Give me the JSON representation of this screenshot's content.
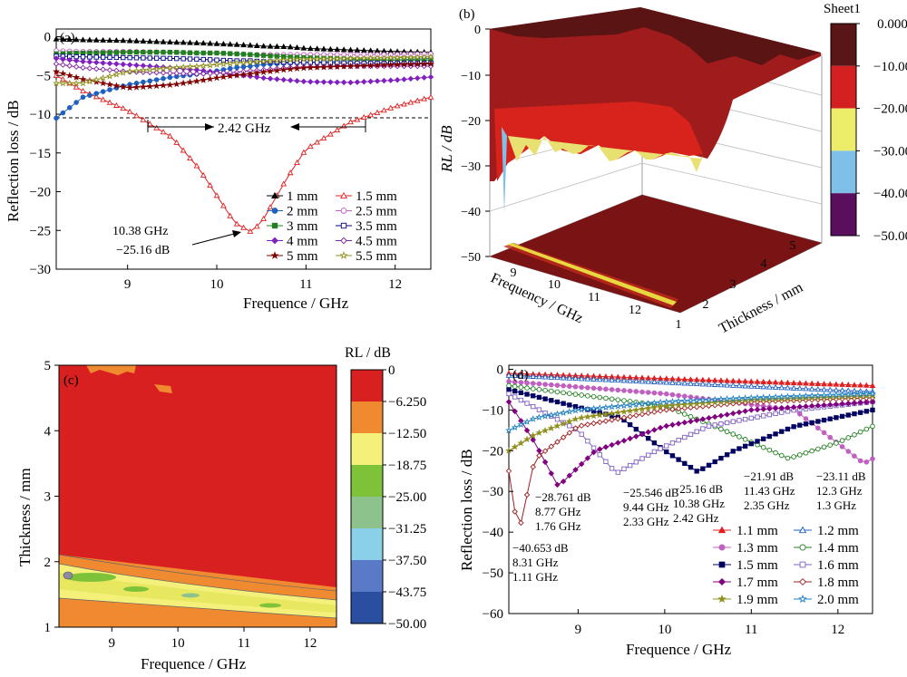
{
  "panels": {
    "a": {
      "label": "(a)",
      "xlabel": "Frequence / GHz",
      "ylabel": "Reflection loss / dB",
      "xlim": [
        8.2,
        12.4
      ],
      "ylim": [
        -30,
        1
      ],
      "xticks": [
        "9",
        "10",
        "11",
        "12"
      ],
      "yticks": [
        "0",
        "−5",
        "−10",
        "−15",
        "−20",
        "−25",
        "−30"
      ],
      "bandwidth_label": "2.42 GHz",
      "min_annot_line1": "10.38 GHz",
      "min_annot_line2": "−25.16 dB",
      "legend": [
        "1 mm",
        "1.5 mm",
        "2 mm",
        "2.5 mm",
        "3 mm",
        "3.5 mm",
        "4 mm",
        "4.5 mm",
        "5 mm",
        "5.5 mm"
      ]
    },
    "b": {
      "label": "(b)",
      "zlabel": "RL / dB",
      "xlabel": "Frequency / GHz",
      "ylabel": "Thickness / mm",
      "zticks": [
        "0",
        "−10",
        "−20",
        "−30",
        "−40",
        "−50"
      ],
      "xticks": [
        "9",
        "10",
        "11",
        "12"
      ],
      "yticks": [
        "1",
        "2",
        "3",
        "4",
        "5"
      ],
      "colorbar_title": "Sheet1",
      "colorbar_ticks": [
        "0.000",
        "−10.00",
        "−20.00",
        "−30.00",
        "−40.00",
        "−50.00"
      ],
      "colorbar_colors": [
        "#5a1616",
        "#d42020",
        "#eded6a",
        "#7ec0e8",
        "#5a0f5e"
      ]
    },
    "c": {
      "label": "(c)",
      "xlabel": "Frequence / GHz",
      "ylabel": "Thickness / mm",
      "colorbar_title": "RL / dB",
      "xticks": [
        "9",
        "10",
        "11",
        "12"
      ],
      "yticks": [
        "1",
        "2",
        "3",
        "4",
        "5"
      ],
      "colorbar_ticks": [
        "0",
        "−6.250",
        "−12.50",
        "−18.75",
        "−25.00",
        "−31.25",
        "−37.50",
        "−43.75",
        "−50.00"
      ],
      "colorbar_colors": [
        "#d82020",
        "#f08a30",
        "#f4f07a",
        "#7ec23a",
        "#8ec28c",
        "#8ad0e8",
        "#5a7ac8",
        "#2a4ea0"
      ]
    },
    "d": {
      "label": "(d)",
      "xlabel": "Frequence / GHz",
      "ylabel": "Reflection loss / dB",
      "xlim": [
        8.2,
        12.4
      ],
      "ylim": [
        -60,
        1
      ],
      "xticks": [
        "9",
        "10",
        "11",
        "12"
      ],
      "yticks": [
        "0",
        "−10",
        "−20",
        "−30",
        "−40",
        "−50",
        "−60"
      ],
      "legend": [
        "1.1 mm",
        "1.2 mm",
        "1.3 mm",
        "1.4 mm",
        "1.5 mm",
        "1.6 mm",
        "1.7 mm",
        "1.8 mm",
        "1.9 mm",
        "2.0 mm"
      ],
      "annotations": [
        {
          "l1": "−40.653 dB",
          "l2": "8.31 GHz",
          "l3": "1.11 GHz"
        },
        {
          "l1": "−28.761 dB",
          "l2": "8.77 GHz",
          "l3": "1.76 GHz"
        },
        {
          "l1": "−25.546 dB",
          "l2": "9.44 GHz",
          "l3": "2.33 GHz"
        },
        {
          "l1": "−25.16 dB",
          "l2": "10.38 GHz",
          "l3": "2.42 GHz"
        },
        {
          "l1": "−21.91 dB",
          "l2": "11.43 GHz",
          "l3": "2.35 GHz"
        },
        {
          "l1": "−23.11 dB",
          "l2": "12.3 GHz",
          "l3": "1.3 GHz"
        }
      ]
    }
  },
  "chart_data": [
    {
      "panel": "a",
      "type": "line",
      "xlabel": "Frequence / GHz",
      "ylabel": "Reflection loss / dB",
      "xlim": [
        8.2,
        12.4
      ],
      "ylim": [
        -30,
        1
      ],
      "x": [
        8.2,
        8.5,
        9.0,
        9.5,
        9.8,
        10.0,
        10.2,
        10.38,
        10.5,
        10.8,
        11.0,
        11.5,
        12.0,
        12.4
      ],
      "series": [
        {
          "name": "1 mm",
          "color": "#000000",
          "marker": "triangle-filled",
          "values": [
            -0.3,
            -0.4,
            -0.5,
            -0.7,
            -0.8,
            -0.9,
            -1.0,
            -1.1,
            -1.2,
            -1.3,
            -1.5,
            -1.7,
            -1.9,
            -2.0
          ]
        },
        {
          "name": "1.5 mm",
          "color": "#e02020",
          "marker": "triangle-open",
          "values": [
            -5.0,
            -7.0,
            -9.5,
            -13.0,
            -17.0,
            -20.5,
            -24.0,
            -25.16,
            -24.0,
            -18.0,
            -14.5,
            -11.0,
            -9.0,
            -7.8
          ]
        },
        {
          "name": "2 mm",
          "color": "#2060c0",
          "marker": "circle-filled",
          "values": [
            -10.5,
            -7.8,
            -6.2,
            -5.2,
            -4.8,
            -4.4,
            -4.0,
            -3.8,
            -3.6,
            -3.4,
            -3.3,
            -3.1,
            -3.0,
            -2.8
          ]
        },
        {
          "name": "2.5 mm",
          "color": "#c060c0",
          "marker": "circle-open",
          "values": [
            -1.8,
            -1.9,
            -1.9,
            -2.0,
            -2.1,
            -2.1,
            -2.2,
            -2.3,
            -2.3,
            -2.3,
            -2.3,
            -2.3,
            -2.3,
            -2.2
          ]
        },
        {
          "name": "3 mm",
          "color": "#208020",
          "marker": "square-filled",
          "values": [
            -2.2,
            -2.1,
            -2.0,
            -2.0,
            -2.1,
            -2.1,
            -2.2,
            -2.3,
            -2.4,
            -2.6,
            -2.7,
            -2.9,
            -3.0,
            -3.0
          ]
        },
        {
          "name": "3.5 mm",
          "color": "#000080",
          "marker": "square-open",
          "values": [
            -2.5,
            -2.6,
            -2.7,
            -2.8,
            -2.9,
            -3.0,
            -3.1,
            -3.1,
            -3.2,
            -3.3,
            -3.3,
            -3.4,
            -3.4,
            -3.4
          ]
        },
        {
          "name": "4 mm",
          "color": "#8020c0",
          "marker": "diamond-filled",
          "values": [
            -2.8,
            -3.2,
            -3.6,
            -4.0,
            -4.3,
            -4.6,
            -4.9,
            -5.1,
            -5.3,
            -5.6,
            -5.8,
            -5.9,
            -5.6,
            -5.2
          ]
        },
        {
          "name": "4.5 mm",
          "color": "#8020a0",
          "marker": "diamond-open",
          "values": [
            -3.5,
            -4.0,
            -4.5,
            -4.7,
            -4.8,
            -4.7,
            -4.6,
            -4.4,
            -4.3,
            -4.0,
            -3.9,
            -3.8,
            -3.8,
            -3.8
          ]
        },
        {
          "name": "5 mm",
          "color": "#800000",
          "marker": "star-filled",
          "values": [
            -4.5,
            -5.5,
            -6.6,
            -6.2,
            -5.7,
            -5.3,
            -5.0,
            -4.8,
            -4.6,
            -4.2,
            -4.0,
            -3.8,
            -3.6,
            -3.5
          ]
        },
        {
          "name": "5.5 mm",
          "color": "#909020",
          "marker": "star-open",
          "values": [
            -6.0,
            -6.0,
            -4.5,
            -4.0,
            -3.8,
            -3.6,
            -3.4,
            -3.3,
            -3.2,
            -3.0,
            -2.9,
            -2.8,
            -2.7,
            -2.6
          ]
        }
      ]
    },
    {
      "panel": "b",
      "type": "area",
      "description": "3D surface of RL versus frequency and thickness with a projected colour map",
      "xlabel": "Frequency / GHz",
      "ylabel": "Thickness / mm",
      "zlabel": "RL / dB",
      "xlim": [
        8.2,
        12.4
      ],
      "ylim": [
        1,
        5
      ],
      "zlim": [
        -50,
        0
      ]
    },
    {
      "panel": "c",
      "type": "heatmap",
      "xlabel": "Frequence / GHz",
      "ylabel": "Thickness / mm",
      "xlim": [
        8.2,
        12.4
      ],
      "ylim": [
        1,
        5
      ],
      "levels": [
        0,
        -6.25,
        -12.5,
        -18.75,
        -25.0,
        -31.25,
        -37.5,
        -43.75,
        -50.0
      ],
      "band_center_thickness": [
        1.75,
        1.3
      ]
    },
    {
      "panel": "d",
      "type": "line",
      "xlabel": "Frequence / GHz",
      "ylabel": "Reflection loss / dB",
      "xlim": [
        8.2,
        12.4
      ],
      "ylim": [
        -60,
        1
      ],
      "series": [
        {
          "name": "1.1 mm",
          "color": "#e02020",
          "marker": "triangle-filled",
          "x": [
            8.2,
            12.4
          ],
          "values": [
            -1.0,
            -4.0
          ]
        },
        {
          "name": "1.2 mm",
          "color": "#2060c0",
          "marker": "triangle-open",
          "x": [
            8.2,
            12.4
          ],
          "values": [
            -1.5,
            -5.5
          ]
        },
        {
          "name": "1.3 mm",
          "color": "#c060c0",
          "marker": "circle-filled",
          "x": [
            8.2,
            10.0,
            11.5,
            12.3,
            12.4
          ],
          "values": [
            -3.0,
            -6.0,
            -10.0,
            -23.11,
            -22.0
          ]
        },
        {
          "name": "1.4 mm",
          "color": "#208020",
          "marker": "circle-open",
          "x": [
            8.2,
            10.0,
            10.8,
            11.43,
            12.0,
            12.4
          ],
          "values": [
            -4.0,
            -9.0,
            -16.0,
            -21.91,
            -18.0,
            -14.0
          ]
        },
        {
          "name": "1.5 mm",
          "color": "#000060",
          "marker": "square-filled",
          "x": [
            8.2,
            9.5,
            10.0,
            10.38,
            10.8,
            11.5,
            12.4
          ],
          "values": [
            -5.0,
            -12.0,
            -20.0,
            -25.16,
            -20.0,
            -14.0,
            -10.0
          ]
        },
        {
          "name": "1.6 mm",
          "color": "#8060c0",
          "marker": "square-open",
          "x": [
            8.2,
            9.0,
            9.44,
            9.9,
            10.5,
            11.5,
            12.4
          ],
          "values": [
            -6.0,
            -15.0,
            -25.546,
            -20.0,
            -14.0,
            -10.0,
            -8.0
          ]
        },
        {
          "name": "1.7 mm",
          "color": "#800080",
          "marker": "diamond-filled",
          "x": [
            8.2,
            8.5,
            8.77,
            9.2,
            10.0,
            11.0,
            12.4
          ],
          "values": [
            -8.0,
            -18.0,
            -28.761,
            -20.0,
            -14.0,
            -10.0,
            -8.0
          ]
        },
        {
          "name": "1.8 mm",
          "color": "#a02020",
          "marker": "diamond-open",
          "x": [
            8.2,
            8.31,
            8.5,
            9.0,
            10.0,
            11.0,
            12.4
          ],
          "values": [
            -25.0,
            -40.653,
            -22.0,
            -14.0,
            -10.0,
            -8.0,
            -7.0
          ]
        },
        {
          "name": "1.9 mm",
          "color": "#909020",
          "marker": "star-filled",
          "x": [
            8.2,
            8.5,
            9.0,
            10.0,
            11.0,
            12.4
          ],
          "values": [
            -20.0,
            -16.0,
            -12.0,
            -9.0,
            -7.5,
            -6.5
          ]
        },
        {
          "name": "2.0 mm",
          "color": "#2080c0",
          "marker": "star-open",
          "x": [
            8.2,
            8.5,
            9.0,
            10.0,
            11.0,
            12.4
          ],
          "values": [
            -15.0,
            -12.0,
            -10.0,
            -8.0,
            -7.0,
            -6.0
          ]
        }
      ]
    }
  ]
}
